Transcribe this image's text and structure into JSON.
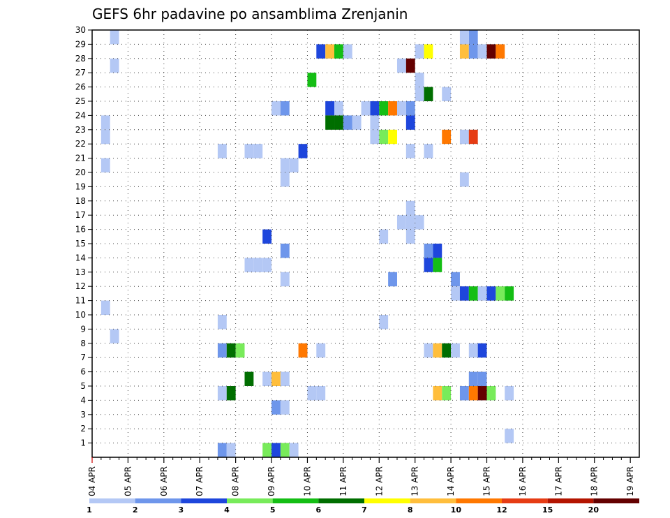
{
  "chart_data": {
    "type": "heatmap",
    "title": "GEFS 6hr padavine po ansamblima Zrenjanin",
    "xlabel": "",
    "ylabel": "",
    "x_tick_labels": [
      "04 APR",
      "05 APR",
      "06 APR",
      "07 APR",
      "08 APR",
      "09 APR",
      "10 APR",
      "11 APR",
      "12 APR",
      "13 APR",
      "14 APR",
      "15 APR",
      "16 APR",
      "17 APR",
      "18 APR",
      "19 APR"
    ],
    "x_step_unit": "6h",
    "x_range": [
      0,
      61
    ],
    "y_tick_labels": [
      "1",
      "2",
      "3",
      "4",
      "5",
      "6",
      "7",
      "8",
      "9",
      "10",
      "11",
      "12",
      "13",
      "14",
      "15",
      "16",
      "17",
      "18",
      "19",
      "20",
      "21",
      "22",
      "23",
      "24",
      "25",
      "26",
      "27",
      "28",
      "29",
      "30"
    ],
    "y_range": [
      0,
      30
    ],
    "grid": true,
    "legend": {
      "placement": "bottom",
      "boundaries": [
        "1",
        "2",
        "3",
        "4",
        "5",
        "6",
        "7",
        "8",
        "10",
        "12",
        "15",
        "20"
      ],
      "colors": [
        "#b4c8f5",
        "#6e96eb",
        "#1e46dc",
        "#78eb5a",
        "#14be14",
        "#006e00",
        "#ffff00",
        "#ffbe3c",
        "#ff7800",
        "#e63c14",
        "#b41400",
        "#640000"
      ]
    },
    "cells": [
      [
        2,
        29,
        0
      ],
      [
        2,
        27,
        0
      ],
      [
        1,
        23,
        0
      ],
      [
        1,
        22,
        0
      ],
      [
        1,
        20,
        0
      ],
      [
        1,
        10,
        0
      ],
      [
        2,
        8,
        0
      ],
      [
        25,
        28,
        2
      ],
      [
        26,
        28,
        7
      ],
      [
        27,
        28,
        4
      ],
      [
        28,
        28,
        0
      ],
      [
        24,
        26,
        4
      ],
      [
        36,
        26,
        0
      ],
      [
        36,
        25,
        0
      ],
      [
        37,
        25,
        5
      ],
      [
        39,
        25,
        0
      ],
      [
        20,
        24,
        0
      ],
      [
        21,
        24,
        1
      ],
      [
        26,
        24,
        2
      ],
      [
        27,
        24,
        0
      ],
      [
        35,
        24,
        1
      ],
      [
        31,
        24,
        2
      ],
      [
        32,
        24,
        4
      ],
      [
        33,
        24,
        8
      ],
      [
        34,
        24,
        0
      ],
      [
        26,
        23,
        5
      ],
      [
        27,
        23,
        5
      ],
      [
        35,
        23,
        2
      ],
      [
        30,
        24,
        0
      ],
      [
        29,
        23,
        0
      ],
      [
        28,
        23,
        1
      ],
      [
        31,
        23,
        0
      ],
      [
        31,
        22,
        0
      ],
      [
        32,
        22,
        3
      ],
      [
        33,
        22,
        6
      ],
      [
        39,
        22,
        8
      ],
      [
        41,
        22,
        0
      ],
      [
        42,
        22,
        9
      ],
      [
        14,
        21,
        0
      ],
      [
        17,
        21,
        0
      ],
      [
        18,
        21,
        0
      ],
      [
        23,
        21,
        2
      ],
      [
        35,
        21,
        0
      ],
      [
        37,
        21,
        0
      ],
      [
        21,
        20,
        0
      ],
      [
        22,
        20,
        0
      ],
      [
        21,
        19,
        0
      ],
      [
        41,
        19,
        0
      ],
      [
        35,
        16,
        0
      ],
      [
        36,
        16,
        0
      ],
      [
        35,
        15,
        0
      ],
      [
        32,
        15,
        0
      ],
      [
        34,
        16,
        0
      ],
      [
        35,
        17,
        0
      ],
      [
        19,
        15,
        2
      ],
      [
        21,
        14,
        1
      ],
      [
        17,
        13,
        0
      ],
      [
        18,
        13,
        0
      ],
      [
        19,
        13,
        0
      ],
      [
        21,
        12,
        0
      ],
      [
        37,
        14,
        1
      ],
      [
        38,
        14,
        2
      ],
      [
        37,
        13,
        2
      ],
      [
        38,
        13,
        4
      ],
      [
        33,
        12,
        1
      ],
      [
        40,
        12,
        1
      ],
      [
        40,
        11,
        0
      ],
      [
        41,
        11,
        2
      ],
      [
        42,
        11,
        4
      ],
      [
        43,
        11,
        0
      ],
      [
        44,
        11,
        2
      ],
      [
        45,
        11,
        3
      ],
      [
        46,
        11,
        4
      ],
      [
        14,
        9,
        0
      ],
      [
        32,
        9,
        0
      ],
      [
        14,
        7,
        1
      ],
      [
        15,
        7,
        5
      ],
      [
        16,
        7,
        3
      ],
      [
        23,
        7,
        8
      ],
      [
        25,
        7,
        0
      ],
      [
        37,
        7,
        0
      ],
      [
        38,
        7,
        7
      ],
      [
        39,
        7,
        5
      ],
      [
        40,
        7,
        0
      ],
      [
        42,
        7,
        0
      ],
      [
        43,
        7,
        2
      ],
      [
        17,
        5,
        5
      ],
      [
        19,
        5,
        0
      ],
      [
        20,
        5,
        7
      ],
      [
        21,
        5,
        0
      ],
      [
        42,
        5,
        1
      ],
      [
        43,
        5,
        1
      ],
      [
        14,
        4,
        0
      ],
      [
        15,
        4,
        5
      ],
      [
        24,
        4,
        0
      ],
      [
        25,
        4,
        0
      ],
      [
        38,
        4,
        7
      ],
      [
        39,
        4,
        3
      ],
      [
        41,
        4,
        1
      ],
      [
        42,
        4,
        8
      ],
      [
        43,
        4,
        11
      ],
      [
        44,
        4,
        3
      ],
      [
        46,
        4,
        0
      ],
      [
        20,
        3,
        1
      ],
      [
        21,
        3,
        0
      ],
      [
        46,
        1,
        0
      ],
      [
        14,
        0,
        1
      ],
      [
        15,
        0,
        0
      ],
      [
        19,
        0,
        3
      ],
      [
        20,
        0,
        2
      ],
      [
        21,
        0,
        3
      ],
      [
        22,
        0,
        0
      ],
      [
        36,
        28,
        0
      ],
      [
        37,
        28,
        6
      ],
      [
        41,
        28,
        7
      ],
      [
        42,
        28,
        1
      ],
      [
        43,
        28,
        0
      ],
      [
        44,
        28,
        11
      ],
      [
        45,
        28,
        8
      ],
      [
        34,
        27,
        0
      ],
      [
        35,
        27,
        11
      ],
      [
        42,
        29,
        1
      ],
      [
        41,
        29,
        0
      ]
    ]
  }
}
